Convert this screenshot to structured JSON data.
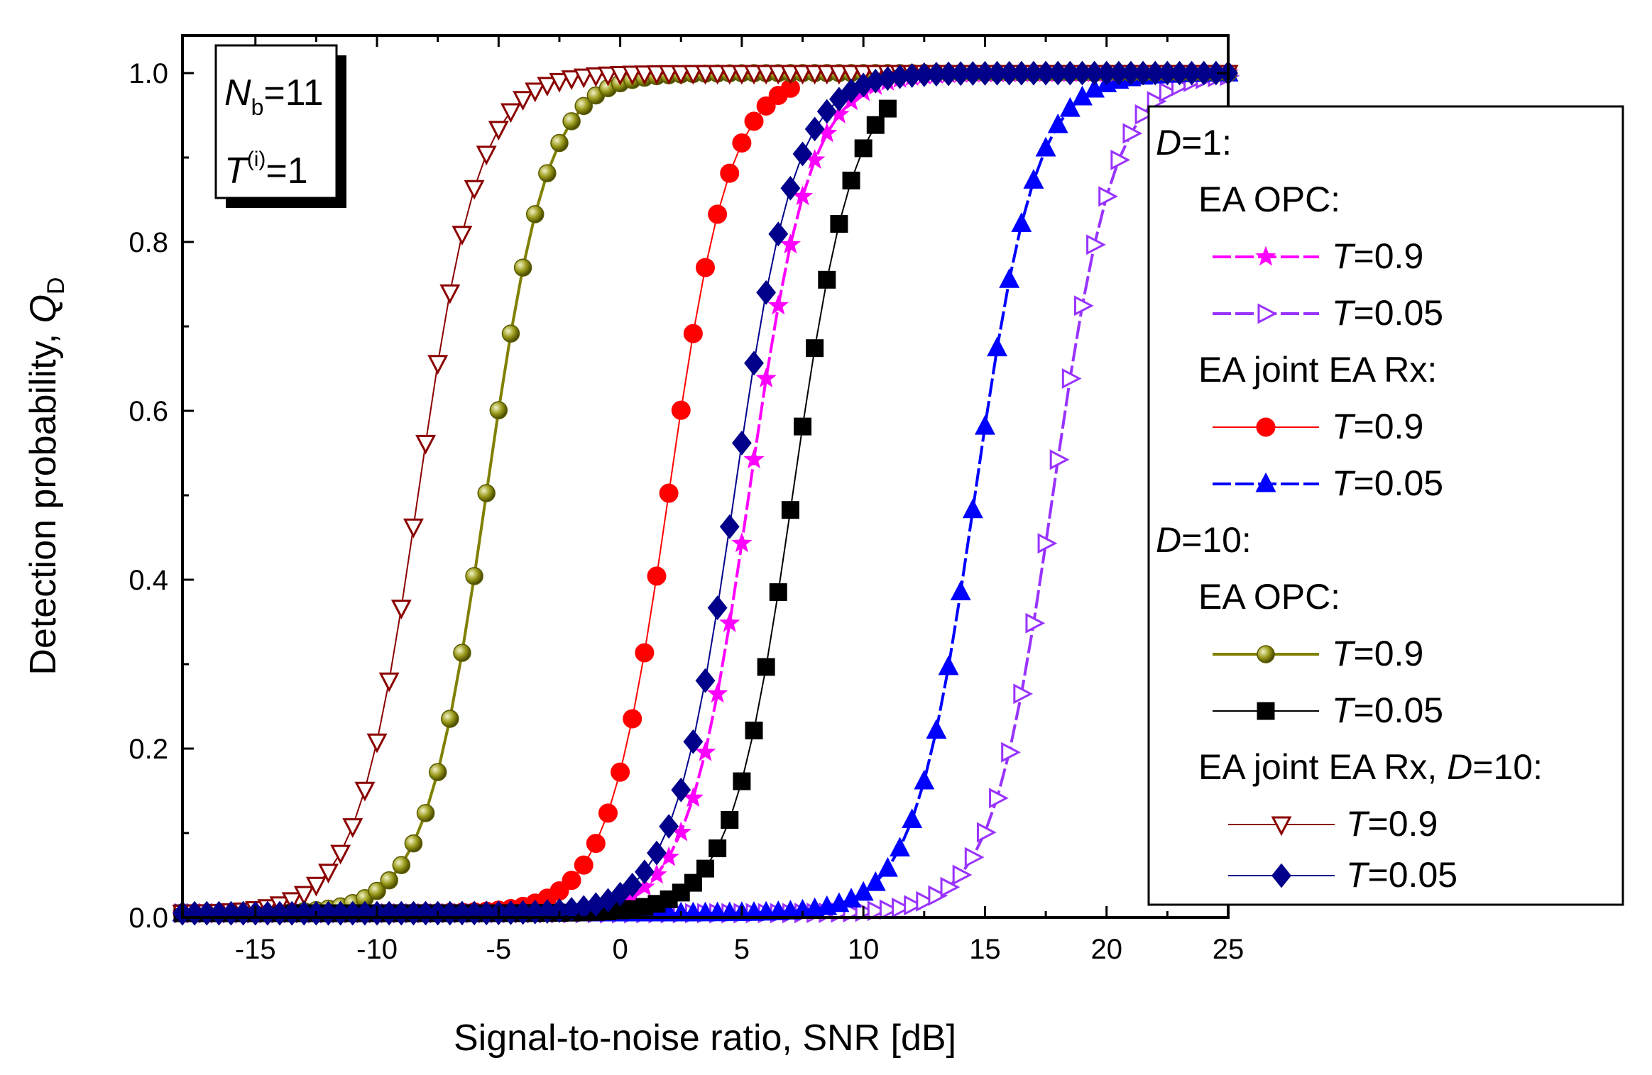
{
  "chart_data": {
    "type": "line",
    "title": "",
    "xlabel": "Signal-to-noise ratio, SNR [dB]",
    "ylabel_main": "Detection probability,",
    "ylabel_sym": "Q",
    "ylabel_sub": "D",
    "xlim": [
      -18,
      25
    ],
    "ylim": [
      0,
      1.0
    ],
    "xticks": [
      -15,
      -10,
      -5,
      0,
      5,
      10,
      15,
      20,
      25
    ],
    "xtick_labels": [
      "-15",
      "-10",
      "-5",
      "0",
      "5",
      "10",
      "15",
      "20",
      "25"
    ],
    "yticks": [
      0,
      0.2,
      0.4,
      0.6,
      0.8,
      1.0
    ],
    "ytick_labels": [
      "0.0",
      "0.2",
      "0.4",
      "0.6",
      "0.8",
      "1.0"
    ],
    "grid": false,
    "legend_position": "right",
    "param_box": {
      "nb_sym": "N",
      "nb_sub": "b",
      "nb_val": "=11",
      "t_sym": "T",
      "t_sup": "(i)",
      "t_val": "=1"
    },
    "series": [
      {
        "name": "D=1: EA OPC: T=0.9",
        "color": "#ff00ff",
        "marker": "star",
        "filled": true,
        "dashed": true,
        "width": 4,
        "midpoint": 5.3,
        "scale": 1.25,
        "x_start": -18,
        "x_end": 25,
        "step": 0.5
      },
      {
        "name": "D=1: EA OPC: T=0.05",
        "color": "#9933ff",
        "marker": "triangle-right",
        "filled": false,
        "dashed": true,
        "width": 4,
        "midpoint": 17.8,
        "scale": 1.25,
        "x_start": -18,
        "x_end": 25,
        "step": 0.5
      },
      {
        "name": "D=1: EA joint EA Rx: T=0.9",
        "color": "#ff0000",
        "marker": "circle",
        "filled": true,
        "dashed": false,
        "width": 2,
        "midpoint": 2.0,
        "scale": 1.25,
        "x_start": -18,
        "x_end": 7,
        "step": 0.5
      },
      {
        "name": "D=1: EA joint EA Rx: T=0.05",
        "color": "#0000ff",
        "marker": "triangle-up",
        "filled": true,
        "dashed": true,
        "width": 4,
        "midpoint": 14.6,
        "scale": 1.25,
        "x_start": -18,
        "x_end": 25,
        "step": 0.5
      },
      {
        "name": "D=10: EA OPC: T=0.9",
        "color": "#808000",
        "marker": "sphere",
        "filled": true,
        "dashed": false,
        "width": 4,
        "midpoint": -5.5,
        "scale": 1.25,
        "x_start": -18,
        "x_end": 25,
        "step": 0.5
      },
      {
        "name": "D=10: EA OPC: T=0.05",
        "color": "#000000",
        "marker": "square",
        "filled": true,
        "dashed": false,
        "width": 2,
        "midpoint": 7.1,
        "scale": 1.25,
        "x_start": -18,
        "x_end": 11,
        "step": 0.5
      },
      {
        "name": "EA joint EA Rx, D=10: T=0.9",
        "color": "#8b0000",
        "marker": "triangle-down",
        "filled": false,
        "dashed": false,
        "width": 2,
        "midpoint": -8.3,
        "scale": 1.25,
        "x_start": -18,
        "x_end": 25,
        "step": 0.5
      },
      {
        "name": "EA joint EA Rx, D=10: T=0.05",
        "color": "#00008b",
        "marker": "diamond",
        "filled": true,
        "dashed": false,
        "width": 2,
        "midpoint": 4.7,
        "scale": 1.25,
        "x_start": -18,
        "x_end": 25,
        "step": 0.5
      }
    ]
  },
  "legend": {
    "headings": [
      {
        "sym": "D",
        "rest": "=1:"
      },
      {
        "sym": "D",
        "rest": "=10:"
      }
    ],
    "groups": [
      "EA OPC:",
      "EA joint EA Rx:",
      "EA OPC:"
    ],
    "group_last_pre": "EA joint EA Rx, ",
    "group_last_sym": "D",
    "group_last_rest": "=10:",
    "entries": [
      {
        "sym": "T",
        "val": "=0.9"
      },
      {
        "sym": "T",
        "val": "=0.05"
      },
      {
        "sym": "T",
        "val": "=0.9"
      },
      {
        "sym": "T",
        "val": "=0.05"
      },
      {
        "sym": "T",
        "val": "=0.9"
      },
      {
        "sym": "T",
        "val": "=0.05"
      },
      {
        "sym": "T",
        "val": "=0.9"
      },
      {
        "sym": "T",
        "val": "=0.05"
      }
    ]
  }
}
